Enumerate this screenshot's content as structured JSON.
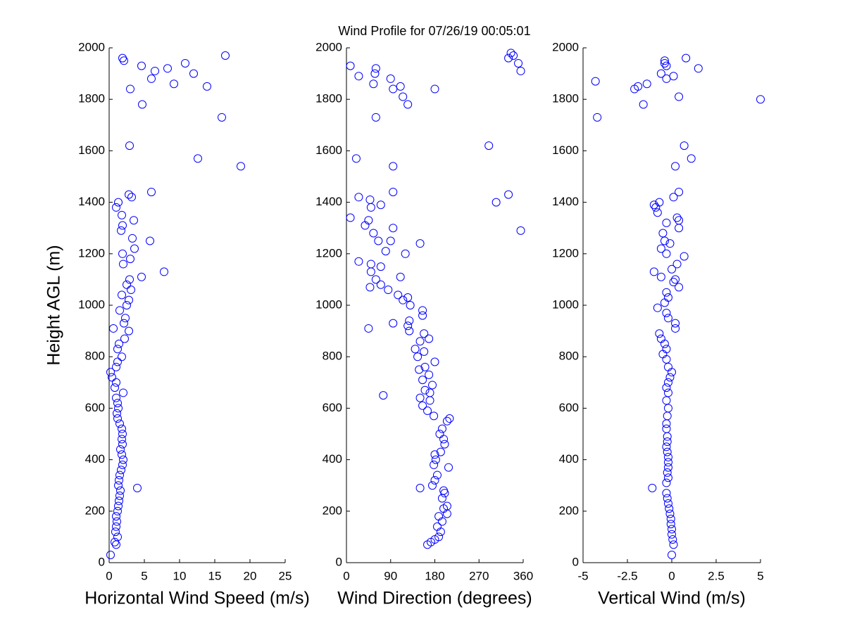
{
  "chart_data": [
    {
      "type": "scatter",
      "title": "Wind Profile for  07/26/19 00:05:01",
      "xlabel": "Horizontal Wind Speed (m/s)",
      "ylabel": "Height AGL (m)",
      "color": "#0000ff",
      "xlim": [
        0,
        25
      ],
      "xticks": [
        0,
        5,
        10,
        15,
        20,
        25
      ],
      "ylim": [
        0,
        2000
      ],
      "yticks": [
        0,
        200,
        400,
        600,
        800,
        1000,
        1200,
        1400,
        1600,
        1800,
        2000
      ],
      "x": [
        0.2,
        1.0,
        0.8,
        1.2,
        0.9,
        1.0,
        1.1,
        1.0,
        1.2,
        1.3,
        1.4,
        1.5,
        1.6,
        4.0,
        1.3,
        1.4,
        1.5,
        1.7,
        1.9,
        2.0,
        1.8,
        1.6,
        1.9,
        1.8,
        1.9,
        1.8,
        1.5,
        1.2,
        1.1,
        1.3,
        1.2,
        1.0,
        2.0,
        0.8,
        1.0,
        0.4,
        0.2,
        1.0,
        1.2,
        1.8,
        1.2,
        1.4,
        2.2,
        2.8,
        0.6,
        2.1,
        2.3,
        1.5,
        2.5,
        2.8,
        1.8,
        3.1,
        2.5,
        2.9,
        4.6,
        7.8,
        2.0,
        3.0,
        1.9,
        3.6,
        5.8,
        3.3,
        1.7,
        1.9,
        3.5,
        1.8,
        1.0,
        1.3,
        3.2,
        2.8,
        6.0,
        18.7,
        12.6,
        2.9,
        16.0,
        4.7,
        3.0,
        13.9,
        9.2,
        6.0,
        12.0,
        6.5,
        8.3,
        4.6,
        10.8,
        2.1,
        1.9,
        16.5
      ],
      "y": [
        30,
        70,
        80,
        100,
        120,
        140,
        160,
        180,
        200,
        220,
        240,
        260,
        280,
        290,
        300,
        320,
        340,
        360,
        380,
        400,
        420,
        440,
        460,
        480,
        500,
        520,
        540,
        560,
        580,
        600,
        620,
        640,
        660,
        680,
        700,
        720,
        740,
        760,
        780,
        800,
        830,
        850,
        870,
        900,
        910,
        930,
        950,
        980,
        1000,
        1020,
        1040,
        1060,
        1080,
        1100,
        1110,
        1130,
        1160,
        1180,
        1200,
        1220,
        1250,
        1260,
        1290,
        1310,
        1330,
        1350,
        1380,
        1400,
        1420,
        1430,
        1440,
        1540,
        1570,
        1620,
        1730,
        1780,
        1840,
        1850,
        1860,
        1880,
        1900,
        1910,
        1920,
        1930,
        1940,
        1950,
        1960,
        1970
      ]
    },
    {
      "type": "scatter",
      "xlabel": "Wind Direction (degrees)",
      "color": "#0000ff",
      "xlim": [
        0,
        360
      ],
      "xticks": [
        0,
        90,
        180,
        270,
        360
      ],
      "ylim": [
        0,
        2000
      ],
      "yticks": [
        0,
        200,
        400,
        600,
        800,
        1000,
        1200,
        1400,
        1600,
        1800,
        2000
      ],
      "x": [
        165,
        172,
        180,
        188,
        192,
        185,
        195,
        188,
        205,
        198,
        205,
        195,
        200,
        198,
        150,
        175,
        180,
        185,
        208,
        178,
        182,
        180,
        192,
        200,
        198,
        190,
        195,
        205,
        210,
        178,
        165,
        155,
        170,
        150,
        75,
        170,
        160,
        175,
        155,
        168,
        148,
        160,
        180,
        145,
        158,
        140,
        150,
        168,
        158,
        128,
        125,
        128,
        95,
        45,
        155,
        155,
        130,
        115,
        105,
        125,
        85,
        48,
        70,
        60,
        110,
        50,
        70,
        25,
        50,
        120,
        80,
        150,
        65,
        90,
        55,
        95,
        355,
        38,
        45,
        8,
        70,
        50,
        305,
        48,
        25,
        330,
        95,
        20,
        95,
        290,
        60,
        125,
        115,
        180,
        95,
        110,
        55,
        90,
        25,
        58,
        355,
        60,
        8,
        350,
        340,
        330,
        335
      ],
      "y": [
        70,
        80,
        90,
        100,
        120,
        140,
        160,
        180,
        190,
        210,
        220,
        250,
        270,
        280,
        290,
        300,
        320,
        340,
        370,
        380,
        400,
        420,
        430,
        460,
        480,
        500,
        520,
        550,
        560,
        570,
        590,
        610,
        630,
        640,
        650,
        660,
        670,
        690,
        710,
        730,
        750,
        760,
        780,
        800,
        820,
        830,
        860,
        870,
        890,
        900,
        920,
        940,
        930,
        910,
        960,
        980,
        1000,
        1020,
        1040,
        1030,
        1060,
        1070,
        1080,
        1100,
        1110,
        1130,
        1150,
        1170,
        1160,
        1200,
        1210,
        1240,
        1250,
        1250,
        1280,
        1300,
        1290,
        1310,
        1330,
        1340,
        1390,
        1380,
        1400,
        1410,
        1420,
        1430,
        1440,
        1570,
        1540,
        1620,
        1730,
        1780,
        1810,
        1840,
        1840,
        1850,
        1860,
        1880,
        1890,
        1900,
        1910,
        1920,
        1930,
        1940,
        1970,
        1960,
        1980
      ]
    },
    {
      "type": "scatter",
      "xlabel": "Vertical Wind (m/s)",
      "color": "#0000ff",
      "xlim": [
        -5,
        5
      ],
      "xticks": [
        -5,
        -2.5,
        0,
        2.5,
        5
      ],
      "ylim": [
        0,
        2000
      ],
      "yticks": [
        0,
        200,
        400,
        600,
        800,
        1000,
        1200,
        1400,
        1600,
        1800,
        2000
      ],
      "x": [
        0,
        0.1,
        0.05,
        0,
        0,
        -0.05,
        -0.05,
        -0.1,
        -0.15,
        -0.2,
        -0.25,
        -0.3,
        -1.1,
        -0.3,
        -0.2,
        -0.25,
        -0.2,
        -0.2,
        -0.2,
        -0.25,
        -0.3,
        -0.25,
        -0.25,
        -0.3,
        -0.3,
        -0.25,
        -0.2,
        -0.3,
        -0.2,
        -0.3,
        -0.2,
        -0.1,
        0,
        -0.2,
        -0.3,
        -0.5,
        -0.3,
        -0.4,
        -0.6,
        -0.7,
        0.2,
        0.2,
        -0.2,
        -0.3,
        -0.8,
        -0.4,
        -0.2,
        -0.3,
        0.4,
        0.1,
        0.2,
        -0.6,
        -1.0,
        0,
        0.3,
        0.7,
        -0.3,
        -0.6,
        -0.1,
        -0.4,
        -0.5,
        0.4,
        -0.3,
        0.4,
        0.3,
        -0.8,
        -0.9,
        -1.0,
        -0.7,
        0.1,
        0.4,
        0.2,
        1.1,
        0.7,
        -4.2,
        -1.6,
        0.4,
        5.0,
        -4.3,
        -1.4,
        -2.1,
        -1.9,
        0.1,
        -0.6,
        -0.3,
        1.5,
        -0.3,
        -0.4,
        -0.4,
        0.8
      ],
      "y": [
        30,
        70,
        90,
        110,
        130,
        150,
        170,
        190,
        210,
        230,
        250,
        270,
        290,
        310,
        330,
        350,
        370,
        390,
        410,
        430,
        450,
        470,
        490,
        520,
        540,
        570,
        600,
        630,
        660,
        680,
        700,
        720,
        740,
        760,
        790,
        810,
        830,
        850,
        870,
        890,
        910,
        930,
        950,
        970,
        990,
        1010,
        1030,
        1050,
        1070,
        1090,
        1100,
        1110,
        1130,
        1140,
        1160,
        1190,
        1200,
        1220,
        1240,
        1250,
        1280,
        1300,
        1320,
        1330,
        1340,
        1360,
        1380,
        1390,
        1400,
        1420,
        1440,
        1540,
        1570,
        1620,
        1730,
        1780,
        1810,
        1800,
        1870,
        1860,
        1840,
        1850,
        1890,
        1900,
        1880,
        1920,
        1930,
        1940,
        1950,
        1960
      ]
    }
  ]
}
